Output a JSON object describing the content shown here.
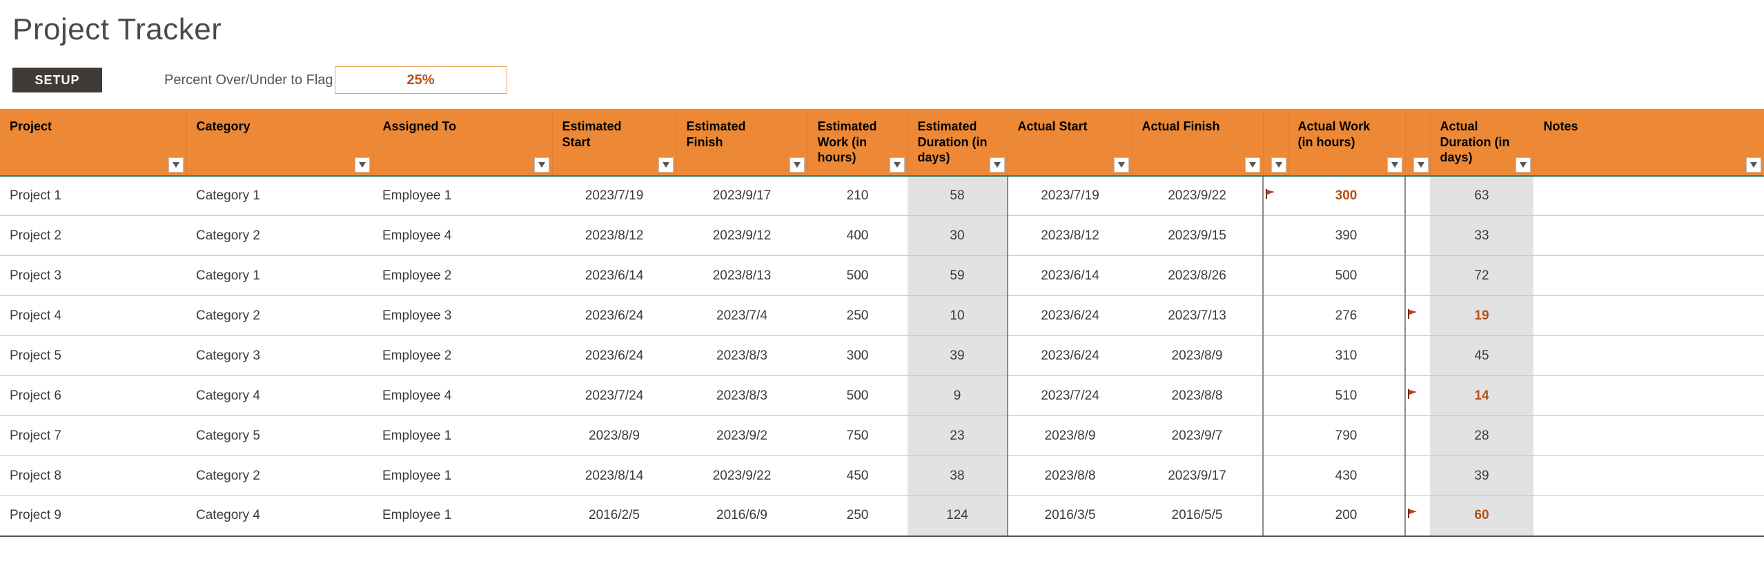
{
  "title": "Project Tracker",
  "setup_button": "SETUP",
  "flag_label": "Percent Over/Under to Flag",
  "flag_value": "25%",
  "colors": {
    "header_bg": "#ed8936",
    "header_border_bottom": "#2e7d6b",
    "shaded_bg": "#e2e2e2",
    "flagged_text": "#b84f17",
    "flag_icon": "#c0392b",
    "setup_bg": "#3f3b36",
    "row_border": "#c7c7c7",
    "vsep": "#8a8a8a"
  },
  "columns": [
    {
      "key": "project",
      "label": "Project",
      "align": "left",
      "filter": true
    },
    {
      "key": "category",
      "label": "Category",
      "align": "left",
      "filter": true
    },
    {
      "key": "assigned",
      "label": "Assigned To",
      "align": "left",
      "filter": true
    },
    {
      "key": "est_start",
      "label": "Estimated Start",
      "align": "center",
      "filter": true
    },
    {
      "key": "est_finish",
      "label": "Estimated Finish",
      "align": "center",
      "filter": true
    },
    {
      "key": "est_work",
      "label": "Estimated Work (in hours)",
      "align": "center",
      "filter": true
    },
    {
      "key": "est_dur",
      "label": "Estimated Duration (in days)",
      "align": "center",
      "filter": true,
      "shaded": true
    },
    {
      "key": "act_start",
      "label": "Actual Start",
      "align": "center",
      "filter": true,
      "vsep_left": true
    },
    {
      "key": "act_finish",
      "label": "Actual Finish",
      "align": "center",
      "filter": true
    },
    {
      "key": "flag_work",
      "label": "",
      "align": "center",
      "filter": true,
      "narrow": true,
      "vsep_left": true
    },
    {
      "key": "act_work",
      "label": "Actual Work (in hours)",
      "align": "center",
      "filter": true
    },
    {
      "key": "flag_dur",
      "label": "",
      "align": "center",
      "filter": true,
      "narrow": true,
      "vsep_left": true
    },
    {
      "key": "act_dur",
      "label": "Actual Duration (in days)",
      "align": "center",
      "filter": true,
      "shaded": true
    },
    {
      "key": "notes",
      "label": "Notes",
      "align": "left",
      "filter": true
    }
  ],
  "rows": [
    {
      "project": "Project 1",
      "category": "Category 1",
      "assigned": "Employee 1",
      "est_start": "2023/7/19",
      "est_finish": "2023/9/17",
      "est_work": "210",
      "est_dur": "58",
      "act_start": "2023/7/19",
      "act_finish": "2023/9/22",
      "flag_work": true,
      "act_work": "300",
      "act_work_flagged": true,
      "flag_dur": false,
      "act_dur": "63",
      "act_dur_flagged": false,
      "notes": ""
    },
    {
      "project": "Project 2",
      "category": "Category 2",
      "assigned": "Employee 4",
      "est_start": "2023/8/12",
      "est_finish": "2023/9/12",
      "est_work": "400",
      "est_dur": "30",
      "act_start": "2023/8/12",
      "act_finish": "2023/9/15",
      "flag_work": false,
      "act_work": "390",
      "act_work_flagged": false,
      "flag_dur": false,
      "act_dur": "33",
      "act_dur_flagged": false,
      "notes": ""
    },
    {
      "project": "Project 3",
      "category": "Category 1",
      "assigned": "Employee 2",
      "est_start": "2023/6/14",
      "est_finish": "2023/8/13",
      "est_work": "500",
      "est_dur": "59",
      "act_start": "2023/6/14",
      "act_finish": "2023/8/26",
      "flag_work": false,
      "act_work": "500",
      "act_work_flagged": false,
      "flag_dur": false,
      "act_dur": "72",
      "act_dur_flagged": false,
      "notes": ""
    },
    {
      "project": "Project 4",
      "category": "Category 2",
      "assigned": "Employee 3",
      "est_start": "2023/6/24",
      "est_finish": "2023/7/4",
      "est_work": "250",
      "est_dur": "10",
      "act_start": "2023/6/24",
      "act_finish": "2023/7/13",
      "flag_work": false,
      "act_work": "276",
      "act_work_flagged": false,
      "flag_dur": true,
      "act_dur": "19",
      "act_dur_flagged": true,
      "notes": ""
    },
    {
      "project": "Project 5",
      "category": "Category 3",
      "assigned": "Employee 2",
      "est_start": "2023/6/24",
      "est_finish": "2023/8/3",
      "est_work": "300",
      "est_dur": "39",
      "act_start": "2023/6/24",
      "act_finish": "2023/8/9",
      "flag_work": false,
      "act_work": "310",
      "act_work_flagged": false,
      "flag_dur": false,
      "act_dur": "45",
      "act_dur_flagged": false,
      "notes": ""
    },
    {
      "project": "Project 6",
      "category": "Category 4",
      "assigned": "Employee 4",
      "est_start": "2023/7/24",
      "est_finish": "2023/8/3",
      "est_work": "500",
      "est_dur": "9",
      "act_start": "2023/7/24",
      "act_finish": "2023/8/8",
      "flag_work": false,
      "act_work": "510",
      "act_work_flagged": false,
      "flag_dur": true,
      "act_dur": "14",
      "act_dur_flagged": true,
      "notes": ""
    },
    {
      "project": "Project 7",
      "category": "Category 5",
      "assigned": "Employee 1",
      "est_start": "2023/8/9",
      "est_finish": "2023/9/2",
      "est_work": "750",
      "est_dur": "23",
      "act_start": "2023/8/9",
      "act_finish": "2023/9/7",
      "flag_work": false,
      "act_work": "790",
      "act_work_flagged": false,
      "flag_dur": false,
      "act_dur": "28",
      "act_dur_flagged": false,
      "notes": ""
    },
    {
      "project": "Project 8",
      "category": "Category 2",
      "assigned": "Employee 1",
      "est_start": "2023/8/14",
      "est_finish": "2023/9/22",
      "est_work": "450",
      "est_dur": "38",
      "act_start": "2023/8/8",
      "act_finish": "2023/9/17",
      "flag_work": false,
      "act_work": "430",
      "act_work_flagged": false,
      "flag_dur": false,
      "act_dur": "39",
      "act_dur_flagged": false,
      "notes": ""
    },
    {
      "project": "Project 9",
      "category": "Category 4",
      "assigned": "Employee 1",
      "est_start": "2016/2/5",
      "est_finish": "2016/6/9",
      "est_work": "250",
      "est_dur": "124",
      "act_start": "2016/3/5",
      "act_finish": "2016/5/5",
      "flag_work": false,
      "act_work": "200",
      "act_work_flagged": false,
      "flag_dur": true,
      "act_dur": "60",
      "act_dur_flagged": true,
      "notes": ""
    }
  ]
}
